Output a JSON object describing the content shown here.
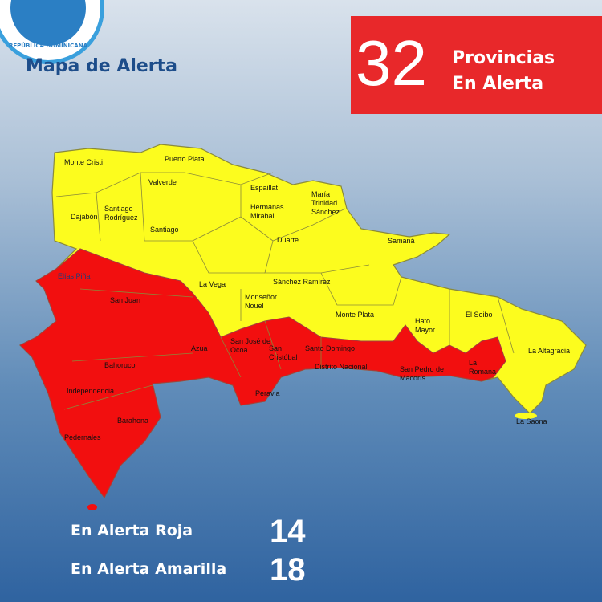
{
  "logo": {
    "text": "REPÚBLICA DOMINICANA"
  },
  "title": "Mapa de Alerta",
  "header": {
    "count": "32",
    "line1": "Provincias",
    "line2": "En Alerta"
  },
  "colors": {
    "red_alert": "#f20f0f",
    "yellow_alert": "#fcfc1e",
    "header_box": "#e8282a",
    "title": "#1d4d8a"
  },
  "provinces": [
    {
      "name": "Monte Cristi",
      "alert": "yellow"
    },
    {
      "name": "Puerto Plata",
      "alert": "yellow"
    },
    {
      "name": "Valverde",
      "alert": "yellow"
    },
    {
      "name": "Espaillat",
      "alert": "yellow"
    },
    {
      "name": "María Trinidad Sánchez",
      "alert": "yellow"
    },
    {
      "name": "Santiago Rodríguez",
      "alert": "yellow"
    },
    {
      "name": "Dajabón",
      "alert": "yellow"
    },
    {
      "name": "Hermanas Mirabal",
      "alert": "yellow"
    },
    {
      "name": "Santiago",
      "alert": "yellow"
    },
    {
      "name": "Duarte",
      "alert": "yellow"
    },
    {
      "name": "Samaná",
      "alert": "yellow"
    },
    {
      "name": "La Vega",
      "alert": "yellow"
    },
    {
      "name": "Sánchez Ramírez",
      "alert": "yellow"
    },
    {
      "name": "Monseñor Nouel",
      "alert": "yellow"
    },
    {
      "name": "Monte Plata",
      "alert": "yellow"
    },
    {
      "name": "Hato Mayor",
      "alert": "yellow"
    },
    {
      "name": "El Seibo",
      "alert": "yellow"
    },
    {
      "name": "La Altagracia",
      "alert": "yellow"
    },
    {
      "name": "Elías Piña",
      "alert": "red"
    },
    {
      "name": "San Juan",
      "alert": "red"
    },
    {
      "name": "Azua",
      "alert": "red"
    },
    {
      "name": "San José de Ocoa",
      "alert": "red"
    },
    {
      "name": "San Cristóbal",
      "alert": "red"
    },
    {
      "name": "Santo Domingo",
      "alert": "red"
    },
    {
      "name": "Distrito Nacional",
      "alert": "red"
    },
    {
      "name": "San Pedro de Macorís",
      "alert": "red"
    },
    {
      "name": "La Romana",
      "alert": "red"
    },
    {
      "name": "Bahoruco",
      "alert": "red"
    },
    {
      "name": "Independencia",
      "alert": "red"
    },
    {
      "name": "Peravia",
      "alert": "red"
    },
    {
      "name": "Barahona",
      "alert": "red"
    },
    {
      "name": "Pedernales",
      "alert": "red"
    }
  ],
  "extra_labels": {
    "saona": "La Saona"
  },
  "summary": {
    "red_label": "En Alerta Roja",
    "red_count": "14",
    "yellow_label": "En Alerta Amarilla",
    "yellow_count": "18"
  }
}
